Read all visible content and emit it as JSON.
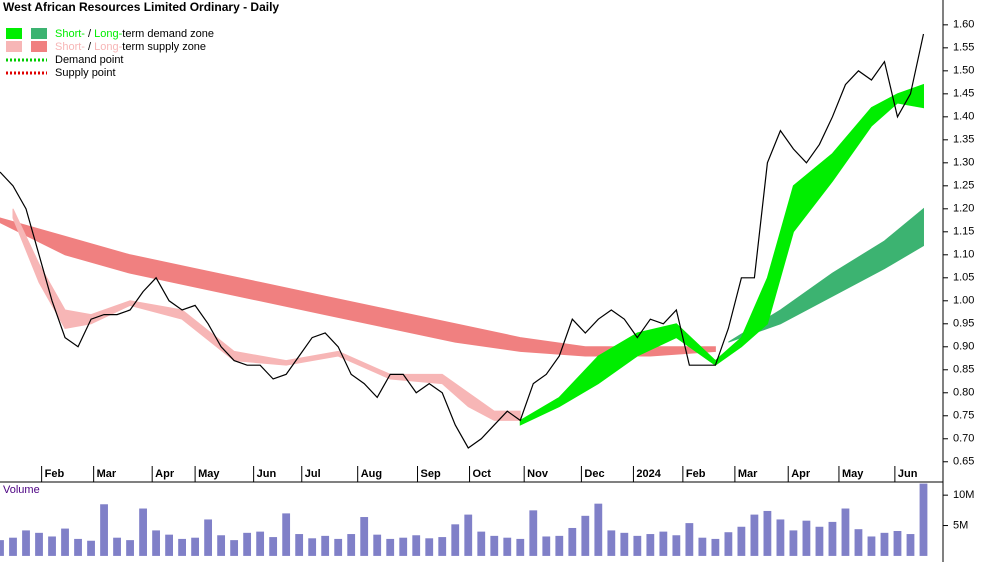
{
  "chart_data": [
    {
      "type": "line",
      "title": "West African Resources Limited Ordinary - Daily",
      "legend": [
        {
          "short": "Short-",
          "sep": " / ",
          "long": "Long-",
          "text": "term demand zone",
          "colors": [
            "#00ee00",
            "#3cb371"
          ]
        },
        {
          "short": "Short-",
          "sep": " / ",
          "long": "Long-",
          "text": "term supply zone",
          "colors": [
            "#f7b6b6",
            "#f08080"
          ]
        },
        {
          "text": "Demand point",
          "color": "#00cc00"
        },
        {
          "text": "Supply point",
          "color": "#e00000"
        }
      ],
      "x": [
        0,
        1,
        2,
        3,
        4,
        5,
        6,
        7,
        8,
        9,
        10,
        11,
        12,
        13,
        14,
        15,
        16,
        17,
        18,
        19,
        20,
        21,
        22,
        23,
        24,
        25,
        26,
        27,
        28,
        29,
        30,
        31,
        32,
        33,
        34,
        35,
        36,
        37,
        38,
        39,
        40,
        41,
        42,
        43,
        44,
        45,
        46,
        47,
        48,
        49,
        50,
        51,
        52,
        53,
        54,
        55,
        56,
        57,
        58,
        59,
        60,
        61,
        62,
        63,
        64,
        65,
        66,
        67,
        68,
        69,
        70,
        71
      ],
      "values": [
        1.28,
        1.25,
        1.2,
        1.1,
        1.0,
        0.92,
        0.9,
        0.96,
        0.97,
        0.97,
        0.98,
        1.02,
        1.05,
        1.0,
        0.98,
        0.99,
        0.95,
        0.9,
        0.87,
        0.86,
        0.86,
        0.83,
        0.84,
        0.88,
        0.92,
        0.93,
        0.9,
        0.84,
        0.82,
        0.79,
        0.84,
        0.84,
        0.8,
        0.82,
        0.8,
        0.73,
        0.68,
        0.7,
        0.73,
        0.76,
        0.74,
        0.82,
        0.84,
        0.88,
        0.96,
        0.93,
        0.96,
        0.98,
        0.96,
        0.92,
        0.96,
        0.95,
        0.98,
        0.86,
        0.86,
        0.86,
        0.94,
        1.05,
        1.05,
        1.3,
        1.37,
        1.33,
        1.3,
        1.34,
        1.4,
        1.47,
        1.5,
        1.48,
        1.52,
        1.4,
        1.45,
        1.58
      ],
      "color": "#000000",
      "zones": [
        {
          "color": "#f08080",
          "x": [
            0,
            5,
            10,
            15,
            20,
            25,
            30,
            35,
            40,
            45,
            50,
            55
          ],
          "upper": [
            1.18,
            1.14,
            1.1,
            1.07,
            1.04,
            1.01,
            0.98,
            0.95,
            0.92,
            0.9,
            0.9,
            0.9
          ],
          "lower": [
            1.17,
            1.1,
            1.06,
            1.03,
            1.0,
            0.97,
            0.94,
            0.91,
            0.89,
            0.88,
            0.88,
            0.89
          ]
        },
        {
          "color": "#3cb371",
          "x": [
            56,
            60,
            64,
            68,
            71
          ],
          "upper": [
            0.91,
            0.98,
            1.06,
            1.13,
            1.2
          ],
          "lower": [
            0.91,
            0.95,
            1.01,
            1.07,
            1.12
          ]
        },
        {
          "color": "#f7b6b6",
          "x": [
            1,
            3,
            5,
            7,
            10,
            14,
            18,
            22,
            26,
            30,
            34,
            36,
            38,
            40
          ],
          "upper": [
            1.2,
            1.08,
            0.98,
            0.97,
            1.0,
            0.98,
            0.89,
            0.87,
            0.89,
            0.84,
            0.84,
            0.8,
            0.76,
            0.76
          ],
          "lower": [
            1.18,
            1.04,
            0.94,
            0.95,
            0.99,
            0.96,
            0.87,
            0.86,
            0.88,
            0.83,
            0.82,
            0.77,
            0.74,
            0.74
          ]
        },
        {
          "color": "#00ee00",
          "x": [
            40,
            43,
            46,
            49,
            52,
            55,
            57,
            59,
            61,
            64,
            67,
            69,
            71
          ],
          "upper": [
            0.74,
            0.79,
            0.88,
            0.93,
            0.95,
            0.87,
            0.92,
            1.05,
            1.25,
            1.32,
            1.42,
            1.45,
            1.47
          ],
          "lower": [
            0.73,
            0.77,
            0.82,
            0.88,
            0.92,
            0.86,
            0.9,
            0.95,
            1.15,
            1.26,
            1.38,
            1.43,
            1.42
          ]
        }
      ],
      "xlim": [
        0,
        72.5
      ],
      "xticks": [
        {
          "value": 3.2,
          "label": "Feb"
        },
        {
          "value": 7.2,
          "label": "Mar"
        },
        {
          "value": 11.7,
          "label": "Apr"
        },
        {
          "value": 15,
          "label": "May"
        },
        {
          "value": 19.5,
          "label": "Jun"
        },
        {
          "value": 23.2,
          "label": "Jul"
        },
        {
          "value": 27.5,
          "label": "Aug"
        },
        {
          "value": 32.1,
          "label": "Sep"
        },
        {
          "value": 36.1,
          "label": "Oct"
        },
        {
          "value": 40.3,
          "label": "Nov"
        },
        {
          "value": 44.7,
          "label": "Dec"
        },
        {
          "value": 48.7,
          "label": "2024"
        },
        {
          "value": 52.5,
          "label": "Feb"
        },
        {
          "value": 56.5,
          "label": "Mar"
        },
        {
          "value": 60.6,
          "label": "Apr"
        },
        {
          "value": 64.5,
          "label": "May"
        },
        {
          "value": 68.8,
          "label": "Jun"
        }
      ],
      "ylim": [
        0.606,
        1.654
      ],
      "yticks": [
        {
          "value": 0.65,
          "label": "0.65"
        },
        {
          "value": 0.7,
          "label": "0.70"
        },
        {
          "value": 0.75,
          "label": "0.75"
        },
        {
          "value": 0.8,
          "label": "0.80"
        },
        {
          "value": 0.85,
          "label": "0.85"
        },
        {
          "value": 0.9,
          "label": "0.90"
        },
        {
          "value": 0.95,
          "label": "0.95"
        },
        {
          "value": 1.0,
          "label": "1.00"
        },
        {
          "value": 1.05,
          "label": "1.05"
        },
        {
          "value": 1.1,
          "label": "1.10"
        },
        {
          "value": 1.15,
          "label": "1.15"
        },
        {
          "value": 1.2,
          "label": "1.20"
        },
        {
          "value": 1.25,
          "label": "1.25"
        },
        {
          "value": 1.3,
          "label": "1.30"
        },
        {
          "value": 1.35,
          "label": "1.35"
        },
        {
          "value": 1.4,
          "label": "1.40"
        },
        {
          "value": 1.45,
          "label": "1.45"
        },
        {
          "value": 1.5,
          "label": "1.50"
        },
        {
          "value": 1.55,
          "label": "1.55"
        },
        {
          "value": 1.6,
          "label": "1.60"
        }
      ]
    },
    {
      "type": "bar",
      "title": "Volume",
      "color": "#8080c8",
      "values": [
        2600000,
        3000000,
        4200000,
        3800000,
        3200000,
        4500000,
        2800000,
        2500000,
        8500000,
        3000000,
        2600000,
        7800000,
        4200000,
        3500000,
        2800000,
        3000000,
        6000000,
        3400000,
        2600000,
        3800000,
        4000000,
        3100000,
        7000000,
        3600000,
        2900000,
        3300000,
        2800000,
        3600000,
        6400000,
        3500000,
        2800000,
        3000000,
        3400000,
        2900000,
        3100000,
        5200000,
        6800000,
        4000000,
        3300000,
        3000000,
        2800000,
        7500000,
        3200000,
        3300000,
        4600000,
        6600000,
        8600000,
        4200000,
        3800000,
        3300000,
        3600000,
        4000000,
        3400000,
        5400000,
        3000000,
        2800000,
        3900000,
        4800000,
        6800000,
        7400000,
        6000000,
        4200000,
        5800000,
        4800000,
        5600000,
        7800000,
        4400000,
        3200000,
        3800000,
        4100000,
        3600000,
        11900000
      ],
      "ylim": [
        -1000000,
        12000000
      ],
      "yticks": [
        {
          "value": 10000000,
          "label": "10M"
        },
        {
          "value": 5000000,
          "label": "5M"
        }
      ]
    }
  ]
}
